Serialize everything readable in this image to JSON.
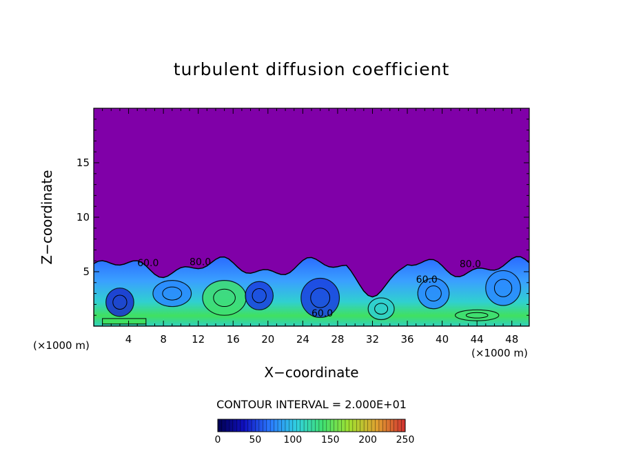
{
  "chart_data": {
    "type": "heatmap",
    "title": "turbulent diffusion coefficient",
    "xlabel": "X−coordinate",
    "ylabel": "Z−coordinate",
    "x_unit": "(×1000 m)",
    "z_unit": "(×1000 m)",
    "xlim": [
      0,
      50
    ],
    "ylim": [
      0,
      20
    ],
    "x_ticks": [
      4,
      8,
      12,
      16,
      20,
      24,
      28,
      32,
      36,
      40,
      44,
      48
    ],
    "y_ticks": [
      5,
      10,
      15
    ],
    "contour_interval_text": "CONTOUR INTERVAL = 2.000E+01",
    "colorbar": {
      "min": 0,
      "max": 250,
      "ticks": [
        0,
        50,
        100,
        150,
        200,
        250
      ],
      "colors": [
        "#000050",
        "#1010c0",
        "#2a7aff",
        "#30e0e0",
        "#40e070",
        "#a0e030",
        "#e0a030",
        "#d03030"
      ]
    },
    "contour_labels": [
      "60.0",
      "80.0",
      "60.0",
      "60.0",
      "80.0"
    ],
    "background_value_color": "#8000a8",
    "mixed_layer_top_km": 6
  }
}
